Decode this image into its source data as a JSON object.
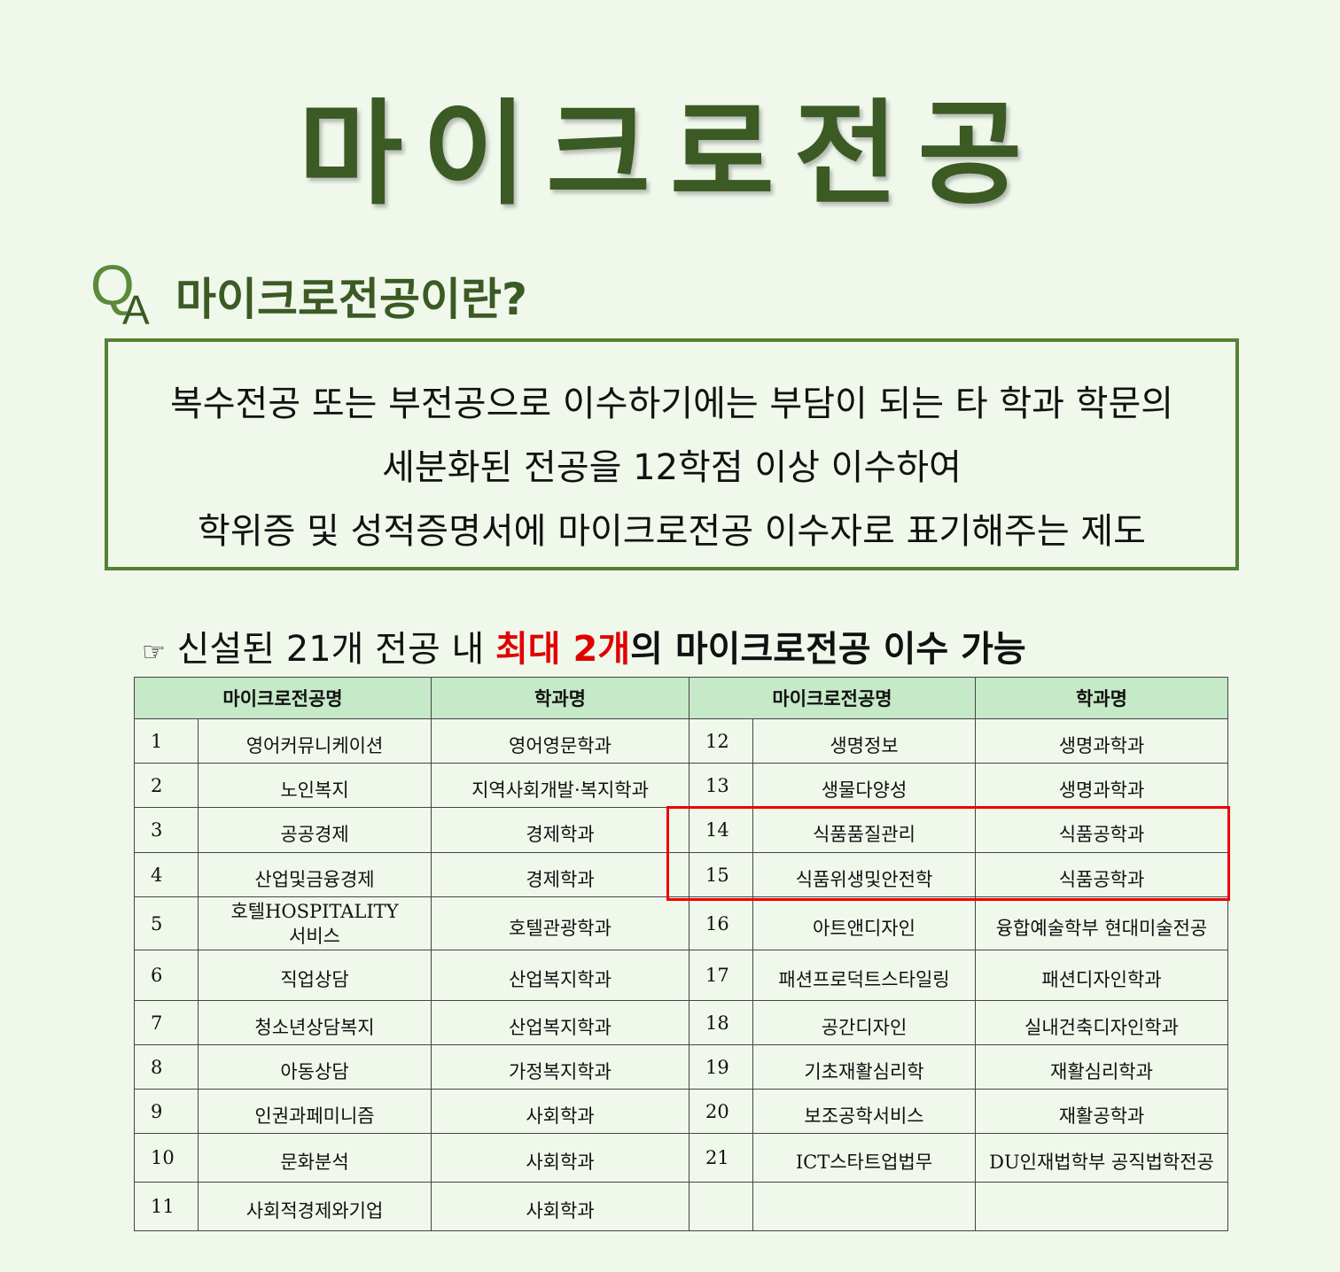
{
  "title": "마이크로전공",
  "qa_icon": {
    "q": "Q",
    "a": "A"
  },
  "subtitle": "마이크로전공이란?",
  "definition": [
    "복수전공 또는 부전공으로 이수하기에는 부담이 되는 타 학과 학문의",
    "세분화된 전공을 12학점 이상 이수하여",
    "학위증 및 성적증명서에 마이크로전공 이수자로 표기해주는 제도"
  ],
  "note": {
    "icon": "☞",
    "pre": "신설된 21개 전공 내 ",
    "highlight": "최대 2개",
    "post": "의 마이크로전공 이수 가능"
  },
  "table": {
    "headers": [
      "마이크로전공명",
      "학과명",
      "마이크로전공명",
      "학과명"
    ],
    "rows": [
      [
        [
          "1",
          "영어커뮤니케이션",
          "영어영문학과"
        ],
        [
          "12",
          "생명정보",
          "생명과학과"
        ]
      ],
      [
        [
          "2",
          "노인복지",
          "지역사회개발·복지학과"
        ],
        [
          "13",
          "생물다양성",
          "생명과학과"
        ]
      ],
      [
        [
          "3",
          "공공경제",
          "경제학과"
        ],
        [
          "14",
          "식품품질관리",
          "식품공학과"
        ]
      ],
      [
        [
          "4",
          "산업및금융경제",
          "경제학과"
        ],
        [
          "15",
          "식품위생및안전학",
          "식품공학과"
        ]
      ],
      [
        [
          "5",
          "호텔HOSPITALITY 서비스",
          "호텔관광학과"
        ],
        [
          "16",
          "아트앤디자인",
          "융합예술학부  현대미술전공"
        ]
      ],
      [
        [
          "6",
          "직업상담",
          "산업복지학과"
        ],
        [
          "17",
          "패션프로덕트스타일링",
          "패션디자인학과"
        ]
      ],
      [
        [
          "7",
          "청소년상담복지",
          "산업복지학과"
        ],
        [
          "18",
          "공간디자인",
          "실내건축디자인학과"
        ]
      ],
      [
        [
          "8",
          "아동상담",
          "가정복지학과"
        ],
        [
          "19",
          "기초재활심리학",
          "재활심리학과"
        ]
      ],
      [
        [
          "9",
          "인권과페미니즘",
          "사회학과"
        ],
        [
          "20",
          "보조공학서비스",
          "재활공학과"
        ]
      ],
      [
        [
          "10",
          "문화분석",
          "사회학과"
        ],
        [
          "21",
          "ICT스타트업법무",
          "DU인재법학부 공직법학전공"
        ]
      ],
      [
        [
          "11",
          "사회적경제와기업",
          "사회학과"
        ],
        [
          "",
          "",
          ""
        ]
      ]
    ],
    "highlight_color": "#ee0000"
  }
}
